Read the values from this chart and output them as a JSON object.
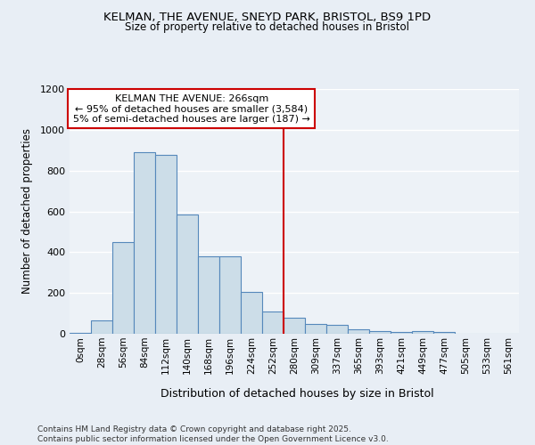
{
  "title_line1": "KELMAN, THE AVENUE, SNEYD PARK, BRISTOL, BS9 1PD",
  "title_line2": "Size of property relative to detached houses in Bristol",
  "xlabel": "Distribution of detached houses by size in Bristol",
  "ylabel": "Number of detached properties",
  "bar_labels": [
    "0sqm",
    "28sqm",
    "56sqm",
    "84sqm",
    "112sqm",
    "140sqm",
    "168sqm",
    "196sqm",
    "224sqm",
    "252sqm",
    "280sqm",
    "309sqm",
    "337sqm",
    "365sqm",
    "393sqm",
    "421sqm",
    "449sqm",
    "477sqm",
    "505sqm",
    "533sqm",
    "561sqm"
  ],
  "bar_values": [
    5,
    65,
    450,
    890,
    875,
    585,
    380,
    380,
    205,
    110,
    80,
    50,
    45,
    22,
    12,
    8,
    12,
    10,
    0,
    0,
    0
  ],
  "bar_color": "#ccdde8",
  "bar_edge_color": "#5588bb",
  "vline_color": "#cc0000",
  "annotation_title": "KELMAN THE AVENUE: 266sqm",
  "annotation_line2": "← 95% of detached houses are smaller (3,584)",
  "annotation_line3": "5% of semi-detached houses are larger (187) →",
  "annotation_box_edge": "#cc0000",
  "ylim": [
    0,
    1200
  ],
  "yticks": [
    0,
    200,
    400,
    600,
    800,
    1000,
    1200
  ],
  "footer": "Contains HM Land Registry data © Crown copyright and database right 2025.\nContains public sector information licensed under the Open Government Licence v3.0.",
  "bg_color": "#e8eef5",
  "plot_bg_color": "#edf2f7",
  "grid_color": "#ffffff",
  "vline_sqm": 266
}
